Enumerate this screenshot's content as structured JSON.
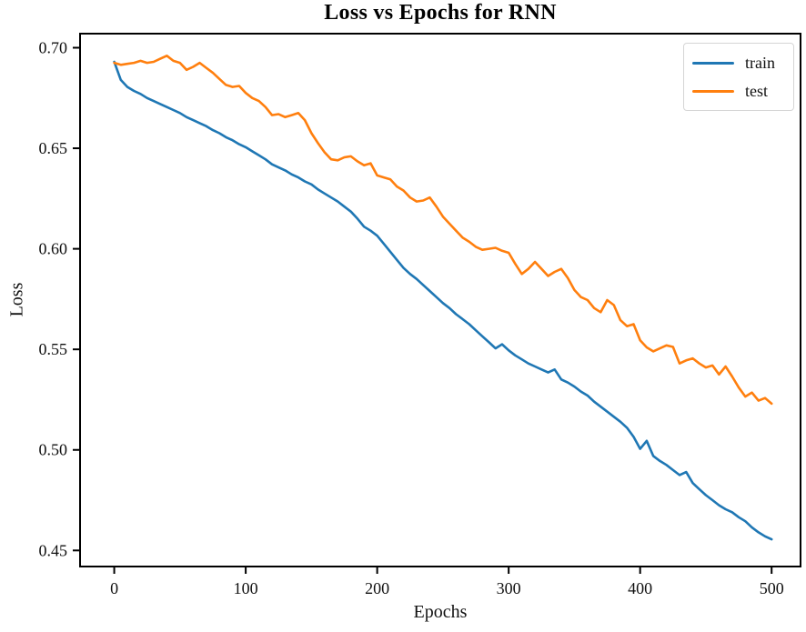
{
  "chart_data": {
    "type": "line",
    "title": "Loss vs Epochs for RNN",
    "xlabel": "Epochs",
    "ylabel": "Loss",
    "xlim": [
      -26,
      522
    ],
    "ylim": [
      0.442,
      0.707
    ],
    "grid": false,
    "legend_position": "upper right",
    "x_ticks": [
      0,
      100,
      200,
      300,
      400,
      500
    ],
    "x_tick_labels": [
      "0",
      "100",
      "200",
      "300",
      "400",
      "500"
    ],
    "y_ticks": [
      0.45,
      0.5,
      0.55,
      0.6,
      0.65,
      0.7
    ],
    "y_tick_labels": [
      "0.45",
      "0.50",
      "0.55",
      "0.60",
      "0.65",
      "0.70"
    ],
    "x": [
      0,
      5,
      10,
      15,
      20,
      25,
      30,
      35,
      40,
      45,
      50,
      55,
      60,
      65,
      70,
      75,
      80,
      85,
      90,
      95,
      100,
      105,
      110,
      115,
      120,
      125,
      130,
      135,
      140,
      145,
      150,
      155,
      160,
      165,
      170,
      175,
      180,
      185,
      190,
      195,
      200,
      205,
      210,
      215,
      220,
      225,
      230,
      235,
      240,
      245,
      250,
      255,
      260,
      265,
      270,
      275,
      280,
      285,
      290,
      295,
      300,
      305,
      310,
      315,
      320,
      325,
      330,
      335,
      340,
      345,
      350,
      355,
      360,
      365,
      370,
      375,
      380,
      385,
      390,
      395,
      400,
      405,
      410,
      415,
      420,
      425,
      430,
      435,
      440,
      445,
      450,
      455,
      460,
      465,
      470,
      475,
      480,
      485,
      490,
      495,
      500
    ],
    "series": [
      {
        "name": "train",
        "color": "#1f77b4",
        "values": [
          0.693,
          0.684,
          0.6805,
          0.6785,
          0.677,
          0.675,
          0.6735,
          0.672,
          0.6705,
          0.669,
          0.6675,
          0.6655,
          0.664,
          0.6625,
          0.661,
          0.659,
          0.6575,
          0.6555,
          0.654,
          0.652,
          0.6505,
          0.6485,
          0.6465,
          0.6445,
          0.642,
          0.6405,
          0.639,
          0.637,
          0.6355,
          0.6335,
          0.632,
          0.6295,
          0.6275,
          0.6255,
          0.6235,
          0.621,
          0.6185,
          0.615,
          0.611,
          0.609,
          0.6065,
          0.6025,
          0.5985,
          0.5945,
          0.5905,
          0.5875,
          0.585,
          0.582,
          0.579,
          0.576,
          0.573,
          0.5705,
          0.5675,
          0.565,
          0.5625,
          0.5595,
          0.5565,
          0.5535,
          0.5505,
          0.5525,
          0.5495,
          0.547,
          0.545,
          0.543,
          0.5415,
          0.54,
          0.5385,
          0.54,
          0.535,
          0.5335,
          0.5315,
          0.529,
          0.527,
          0.524,
          0.5215,
          0.519,
          0.5165,
          0.514,
          0.511,
          0.5065,
          0.5005,
          0.5045,
          0.497,
          0.4945,
          0.4925,
          0.49,
          0.4875,
          0.489,
          0.4835,
          0.4805,
          0.4775,
          0.475,
          0.4725,
          0.4705,
          0.469,
          0.4665,
          0.4645,
          0.4615,
          0.459,
          0.457,
          0.4555
        ]
      },
      {
        "name": "test",
        "color": "#ff7f0e",
        "values": [
          0.6925,
          0.6915,
          0.692,
          0.6925,
          0.6935,
          0.6925,
          0.693,
          0.6945,
          0.696,
          0.6935,
          0.6925,
          0.689,
          0.6905,
          0.6925,
          0.69,
          0.6875,
          0.6845,
          0.6815,
          0.6805,
          0.681,
          0.6775,
          0.675,
          0.6735,
          0.6705,
          0.6665,
          0.667,
          0.6655,
          0.6665,
          0.6675,
          0.664,
          0.6575,
          0.6525,
          0.648,
          0.6445,
          0.644,
          0.6455,
          0.646,
          0.6435,
          0.6415,
          0.6425,
          0.6365,
          0.6355,
          0.6345,
          0.631,
          0.629,
          0.6255,
          0.6235,
          0.624,
          0.6255,
          0.621,
          0.616,
          0.6125,
          0.609,
          0.6055,
          0.6035,
          0.601,
          0.5995,
          0.6,
          0.6005,
          0.599,
          0.598,
          0.5925,
          0.5875,
          0.59,
          0.5935,
          0.59,
          0.5865,
          0.5885,
          0.59,
          0.5855,
          0.5795,
          0.576,
          0.5745,
          0.5705,
          0.5685,
          0.5745,
          0.572,
          0.5645,
          0.5615,
          0.5625,
          0.5545,
          0.551,
          0.549,
          0.5505,
          0.552,
          0.5512,
          0.543,
          0.5445,
          0.5455,
          0.543,
          0.541,
          0.542,
          0.5375,
          0.5415,
          0.5365,
          0.531,
          0.5265,
          0.5285,
          0.5245,
          0.5258,
          0.523
        ]
      }
    ]
  }
}
